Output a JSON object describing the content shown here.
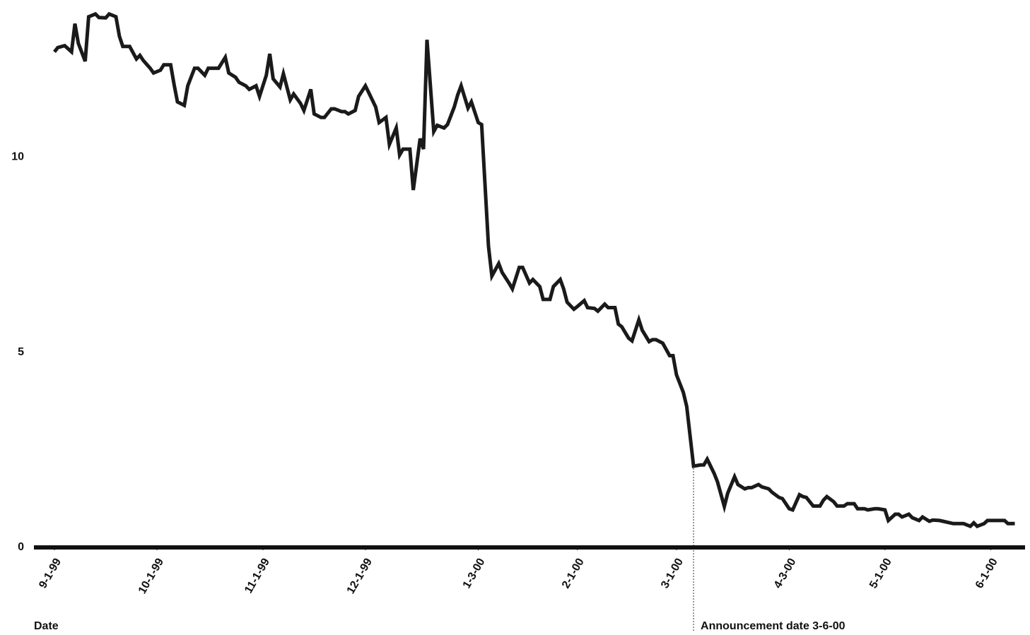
{
  "chart_data": {
    "type": "line",
    "x_label": "Date",
    "color": "#1a1a1a",
    "xlim": [
      "1999-08-26",
      "2000-06-11"
    ],
    "ylim": [
      0,
      14
    ],
    "yticks": [
      0,
      5,
      10
    ],
    "xticks": [
      {
        "value": "1999-09-01",
        "label": "9-1-99"
      },
      {
        "value": "1999-10-01",
        "label": "10-1-99"
      },
      {
        "value": "1999-11-01",
        "label": "11-1-99"
      },
      {
        "value": "1999-12-01",
        "label": "12-1-99"
      },
      {
        "value": "2000-01-03",
        "label": "1-3-00"
      },
      {
        "value": "2000-02-01",
        "label": "2-1-00"
      },
      {
        "value": "2000-03-01",
        "label": "3-1-00"
      },
      {
        "value": "2000-04-03",
        "label": "4-3-00"
      },
      {
        "value": "2000-05-01",
        "label": "5-1-00"
      },
      {
        "value": "2000-06-01",
        "label": "6-1-00"
      }
    ],
    "annotation": {
      "date": "2000-03-06",
      "label": "Announcement date 3-6-00"
    },
    "x": [
      "1999-09-01",
      "1999-09-02",
      "1999-09-04",
      "1999-09-06",
      "1999-09-07",
      "1999-09-08",
      "1999-09-10",
      "1999-09-11",
      "1999-09-13",
      "1999-09-14",
      "1999-09-16",
      "1999-09-17",
      "1999-09-19",
      "1999-09-20",
      "1999-09-21",
      "1999-09-23",
      "1999-09-25",
      "1999-09-26",
      "1999-09-27",
      "1999-09-29",
      "1999-09-30",
      "1999-10-02",
      "1999-10-03",
      "1999-10-05",
      "1999-10-06",
      "1999-10-07",
      "1999-10-09",
      "1999-10-10",
      "1999-10-12",
      "1999-10-13",
      "1999-10-15",
      "1999-10-16",
      "1999-10-18",
      "1999-10-19",
      "1999-10-21",
      "1999-10-22",
      "1999-10-24",
      "1999-10-25",
      "1999-10-27",
      "1999-10-28",
      "1999-10-30",
      "1999-10-31",
      "1999-11-02",
      "1999-11-03",
      "1999-11-04",
      "1999-11-06",
      "1999-11-07",
      "1999-11-09",
      "1999-11-10",
      "1999-11-12",
      "1999-11-13",
      "1999-11-15",
      "1999-11-16",
      "1999-11-18",
      "1999-11-19",
      "1999-11-21",
      "1999-11-22",
      "1999-11-24",
      "1999-11-25",
      "1999-11-26",
      "1999-11-28",
      "1999-11-29",
      "1999-12-01",
      "1999-12-02",
      "1999-12-04",
      "1999-12-05",
      "1999-12-07",
      "1999-12-08",
      "1999-12-10",
      "1999-12-11",
      "1999-12-12",
      "1999-12-14",
      "1999-12-15",
      "1999-12-17",
      "1999-12-18",
      "1999-12-19",
      "1999-12-21",
      "1999-12-22",
      "1999-12-24",
      "1999-12-25",
      "1999-12-27",
      "1999-12-28",
      "1999-12-29",
      "1999-12-31",
      "2000-01-01",
      "2000-01-03",
      "2000-01-04",
      "2000-01-06",
      "2000-01-07",
      "2000-01-09",
      "2000-01-10",
      "2000-01-12",
      "2000-01-13",
      "2000-01-15",
      "2000-01-16",
      "2000-01-18",
      "2000-01-19",
      "2000-01-21",
      "2000-01-22",
      "2000-01-24",
      "2000-01-25",
      "2000-01-27",
      "2000-01-28",
      "2000-01-29",
      "2000-01-31",
      "2000-02-01",
      "2000-02-03",
      "2000-02-04",
      "2000-02-06",
      "2000-02-07",
      "2000-02-09",
      "2000-02-10",
      "2000-02-12",
      "2000-02-13",
      "2000-02-14",
      "2000-02-16",
      "2000-02-17",
      "2000-02-19",
      "2000-02-20",
      "2000-02-22",
      "2000-02-23",
      "2000-02-24",
      "2000-02-26",
      "2000-02-28",
      "2000-02-29",
      "2000-03-01",
      "2000-03-03",
      "2000-03-04",
      "2000-03-06",
      "2000-03-08",
      "2000-03-09",
      "2000-03-10",
      "2000-03-12",
      "2000-03-13",
      "2000-03-15",
      "2000-03-16",
      "2000-03-18",
      "2000-03-19",
      "2000-03-21",
      "2000-03-22",
      "2000-03-23",
      "2000-03-25",
      "2000-03-26",
      "2000-03-28",
      "2000-03-29",
      "2000-03-31",
      "2000-04-01",
      "2000-04-03",
      "2000-04-04",
      "2000-04-06",
      "2000-04-07",
      "2000-04-08",
      "2000-04-10",
      "2000-04-12",
      "2000-04-13",
      "2000-04-14",
      "2000-04-16",
      "2000-04-17",
      "2000-04-19",
      "2000-04-20",
      "2000-04-22",
      "2000-04-23",
      "2000-04-25",
      "2000-04-26",
      "2000-04-28",
      "2000-04-29",
      "2000-05-01",
      "2000-05-02",
      "2000-05-04",
      "2000-05-05",
      "2000-05-06",
      "2000-05-08",
      "2000-05-09",
      "2000-05-11",
      "2000-05-12",
      "2000-05-14",
      "2000-05-15",
      "2000-05-17",
      "2000-05-18",
      "2000-05-20",
      "2000-05-21",
      "2000-05-22",
      "2000-05-24",
      "2000-05-26",
      "2000-05-27",
      "2000-05-28",
      "2000-05-30",
      "2000-05-31",
      "2000-06-02",
      "2000-06-03",
      "2000-06-05",
      "2000-06-06",
      "2000-06-08"
    ],
    "values": [
      12.69,
      12.8,
      12.85,
      12.69,
      13.41,
      12.91,
      12.45,
      13.59,
      13.66,
      13.57,
      13.56,
      13.66,
      13.59,
      13.09,
      12.83,
      12.83,
      12.51,
      12.6,
      12.47,
      12.27,
      12.15,
      12.22,
      12.36,
      12.36,
      11.86,
      11.41,
      11.32,
      11.82,
      12.27,
      12.27,
      12.09,
      12.27,
      12.27,
      12.27,
      12.55,
      12.15,
      12.04,
      11.91,
      11.82,
      11.73,
      11.82,
      11.55,
      12.09,
      12.64,
      12.0,
      11.79,
      12.13,
      11.46,
      11.61,
      11.37,
      11.19,
      11.73,
      11.1,
      11.01,
      11.01,
      11.23,
      11.23,
      11.16,
      11.16,
      11.1,
      11.19,
      11.55,
      11.82,
      11.64,
      11.28,
      10.88,
      11.01,
      10.32,
      10.74,
      10.05,
      10.2,
      10.2,
      9.15,
      10.47,
      10.2,
      13.0,
      10.65,
      10.81,
      10.74,
      10.83,
      11.28,
      11.59,
      11.82,
      11.25,
      11.41,
      10.88,
      10.83,
      7.71,
      6.95,
      7.27,
      7.04,
      6.77,
      6.62,
      7.17,
      7.17,
      6.77,
      6.86,
      6.68,
      6.35,
      6.35,
      6.68,
      6.86,
      6.62,
      6.28,
      6.1,
      6.17,
      6.32,
      6.14,
      6.12,
      6.05,
      6.23,
      6.14,
      6.14,
      5.72,
      5.65,
      5.36,
      5.29,
      5.83,
      5.56,
      5.27,
      5.32,
      5.32,
      5.23,
      4.91,
      4.91,
      4.42,
      3.97,
      3.61,
      2.08,
      2.11,
      2.11,
      2.26,
      1.9,
      1.68,
      1.05,
      1.39,
      1.81,
      1.61,
      1.5,
      1.53,
      1.53,
      1.61,
      1.55,
      1.5,
      1.41,
      1.28,
      1.25,
      0.99,
      0.96,
      1.35,
      1.3,
      1.28,
      1.06,
      1.06,
      1.21,
      1.3,
      1.17,
      1.06,
      1.06,
      1.12,
      1.12,
      0.99,
      0.99,
      0.96,
      0.99,
      0.99,
      0.96,
      0.69,
      0.85,
      0.85,
      0.78,
      0.85,
      0.76,
      0.69,
      0.78,
      0.67,
      0.7,
      0.69,
      0.67,
      0.63,
      0.61,
      0.61,
      0.61,
      0.54,
      0.63,
      0.54,
      0.61,
      0.69,
      0.69,
      0.69,
      0.69,
      0.61,
      0.61
    ]
  }
}
